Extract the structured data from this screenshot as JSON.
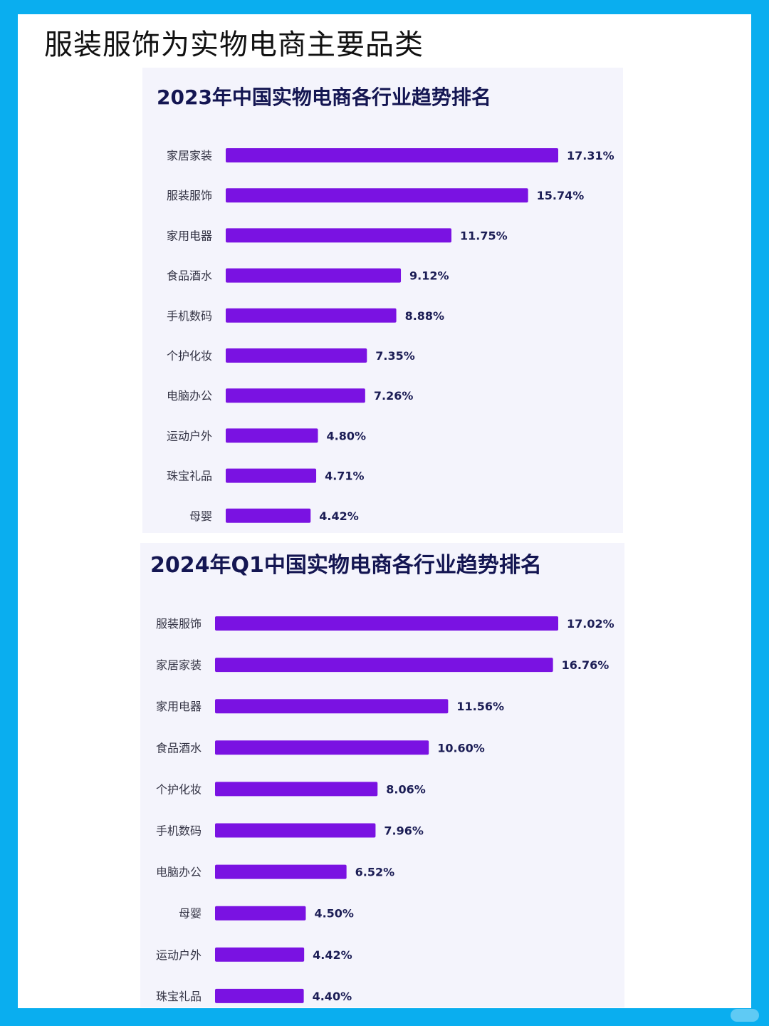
{
  "page": {
    "title": "服装服饰为实物电商主要品类"
  },
  "colors": {
    "background": "#0aaeef",
    "bar": "#7a12e2",
    "card": "#f4f4fc",
    "title": "#141652"
  },
  "chart_data": [
    {
      "type": "bar",
      "orientation": "horizontal",
      "title": "2023年中国实物电商各行业趋势排名",
      "xlabel": "",
      "ylabel": "",
      "unit": "%",
      "xlim": [
        0,
        17.31
      ],
      "grid": false,
      "legend": "none",
      "categories": [
        "家居家装",
        "服装服饰",
        "家用电器",
        "食品酒水",
        "手机数码",
        "个护化妆",
        "电脑办公",
        "运动户外",
        "珠宝礼品",
        "母婴"
      ],
      "values": [
        17.31,
        15.74,
        11.75,
        9.12,
        8.88,
        7.35,
        7.26,
        4.8,
        4.71,
        4.42
      ],
      "value_labels": [
        "17.31%",
        "15.74%",
        "11.75%",
        "9.12%",
        "8.88%",
        "7.35%",
        "7.26%",
        "4.80%",
        "4.71%",
        "4.42%"
      ]
    },
    {
      "type": "bar",
      "orientation": "horizontal",
      "title": "2024年Q1中国实物电商各行业趋势排名",
      "xlabel": "",
      "ylabel": "",
      "unit": "%",
      "xlim": [
        0,
        17.02
      ],
      "grid": false,
      "legend": "none",
      "categories": [
        "服装服饰",
        "家居家装",
        "家用电器",
        "食品酒水",
        "个护化妆",
        "手机数码",
        "电脑办公",
        "母婴",
        "运动户外",
        "珠宝礼品"
      ],
      "values": [
        17.02,
        16.76,
        11.56,
        10.6,
        8.06,
        7.96,
        6.52,
        4.5,
        4.42,
        4.4
      ],
      "value_labels": [
        "17.02%",
        "16.76%",
        "11.56%",
        "10.60%",
        "8.06%",
        "7.96%",
        "6.52%",
        "4.50%",
        "4.42%",
        "4.40%"
      ]
    }
  ]
}
